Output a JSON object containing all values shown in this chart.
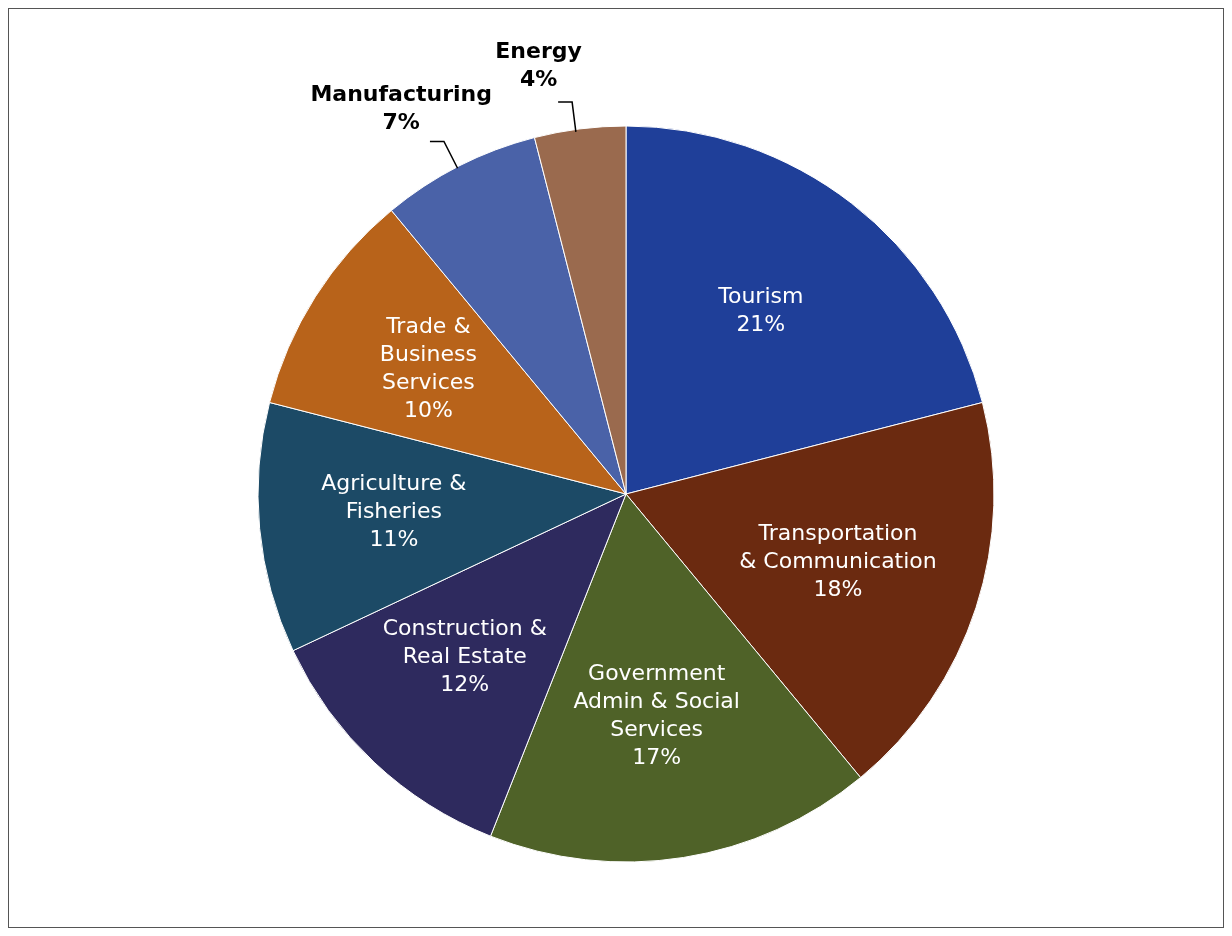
{
  "chart_data": {
    "type": "pie",
    "categories": [
      "Tourism",
      "Transportation & Communication",
      "Government Admin & Social Services",
      "Construction & Real Estate",
      "Agriculture & Fisheries",
      "Trade & Business Services",
      "Manufacturing",
      "Energy"
    ],
    "values": [
      21,
      18,
      17,
      12,
      11,
      10,
      7,
      4
    ],
    "value_labels": [
      "21%",
      "18%",
      "17%",
      "12%",
      "11%",
      "10%",
      "7%",
      "4%"
    ],
    "colors": [
      "#1f3f99",
      "#6b2a10",
      "#4f6228",
      "#2e2a5e",
      "#1c4a66",
      "#b8631a",
      "#4a62a8",
      "#9a6a4e"
    ],
    "legend": false
  }
}
